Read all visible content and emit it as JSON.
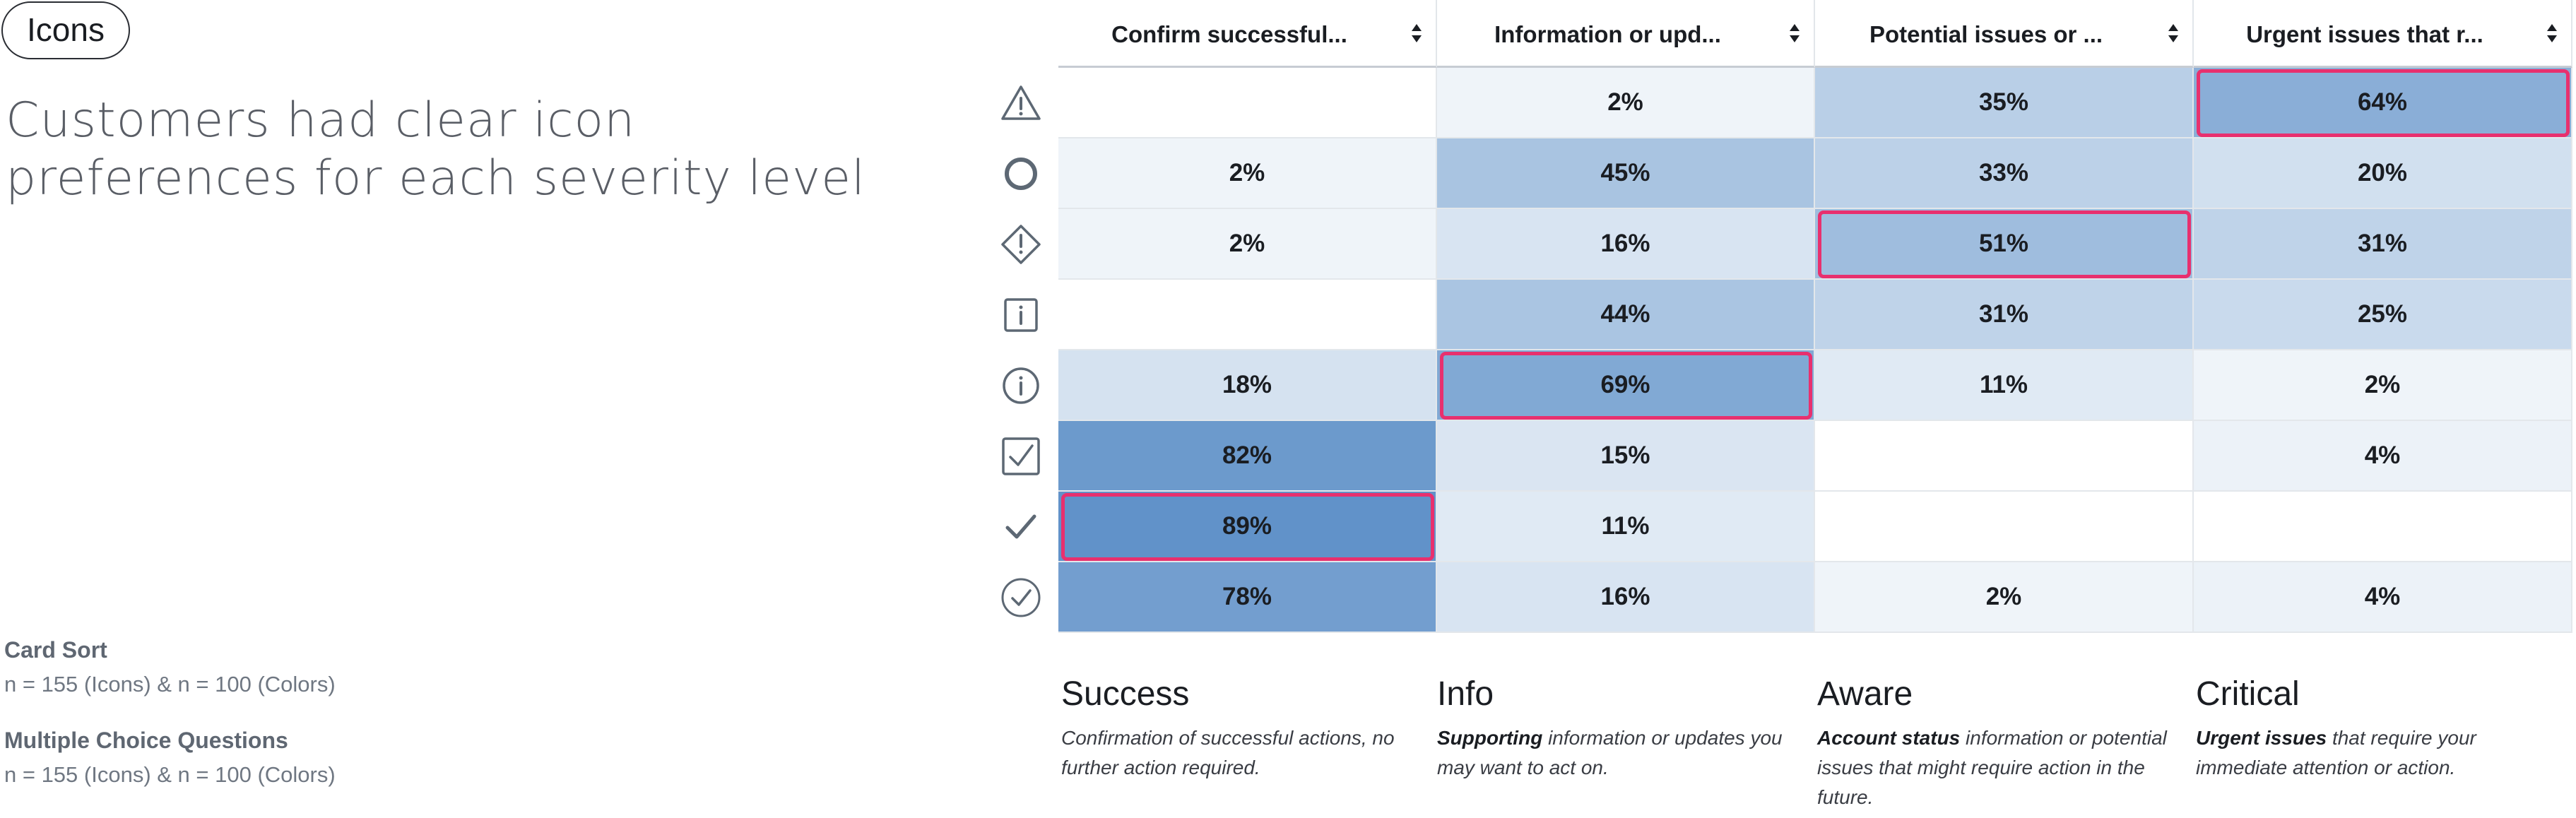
{
  "tag": "Icons",
  "headline": [
    "Customers had clear icon",
    "preferences for each severity level"
  ],
  "meta": [
    {
      "title": "Card Sort",
      "text": "n = 155 (Icons) & n = 100 (Colors)"
    },
    {
      "title": "Multiple Choice Questions",
      "text": "n = 155 (Icons) & n = 100 (Colors)"
    }
  ],
  "columns": [
    "Confirm successful...",
    "Information or upd...",
    "Potential issues or ...",
    "Urgent issues that r..."
  ],
  "rows": [
    {
      "icon": "warning-triangle-icon",
      "values": [
        "",
        "2%",
        "35%",
        "64%"
      ],
      "pct": [
        0,
        2,
        35,
        64
      ],
      "highlight": 3
    },
    {
      "icon": "ring-icon",
      "values": [
        "2%",
        "45%",
        "33%",
        "20%"
      ],
      "pct": [
        2,
        45,
        33,
        20
      ],
      "highlight": -1
    },
    {
      "icon": "info-diamond-icon",
      "values": [
        "2%",
        "16%",
        "51%",
        "31%"
      ],
      "pct": [
        2,
        16,
        51,
        31
      ],
      "highlight": 2
    },
    {
      "icon": "info-square-icon",
      "values": [
        "",
        "44%",
        "31%",
        "25%"
      ],
      "pct": [
        0,
        44,
        31,
        25
      ],
      "highlight": -1
    },
    {
      "icon": "info-circle-icon",
      "values": [
        "18%",
        "69%",
        "11%",
        "2%"
      ],
      "pct": [
        18,
        69,
        11,
        2
      ],
      "highlight": 1
    },
    {
      "icon": "checkbox-icon",
      "values": [
        "82%",
        "15%",
        "",
        "4%"
      ],
      "pct": [
        82,
        15,
        0,
        4
      ],
      "highlight": -1
    },
    {
      "icon": "checkmark-icon",
      "values": [
        "89%",
        "11%",
        "",
        ""
      ],
      "pct": [
        89,
        11,
        0,
        0
      ],
      "highlight": 0
    },
    {
      "icon": "check-circle-icon",
      "values": [
        "78%",
        "16%",
        "2%",
        "4%"
      ],
      "pct": [
        78,
        16,
        2,
        4
      ],
      "highlight": -1
    }
  ],
  "legend": [
    {
      "title": "Success",
      "bold": "",
      "rest": "Confirmation of successful actions, no further action required."
    },
    {
      "title": "Info",
      "bold": "Supporting",
      "rest": " information or updates you may want to act on."
    },
    {
      "title": "Aware",
      "bold": "Account status",
      "rest": " information or potential issues that might require action in the future."
    },
    {
      "title": "Critical",
      "bold": "Urgent issues",
      "rest": " that require your immediate attention or action."
    }
  ],
  "colors": {
    "highlight": "#e8306e",
    "icon": "#5d6874"
  }
}
